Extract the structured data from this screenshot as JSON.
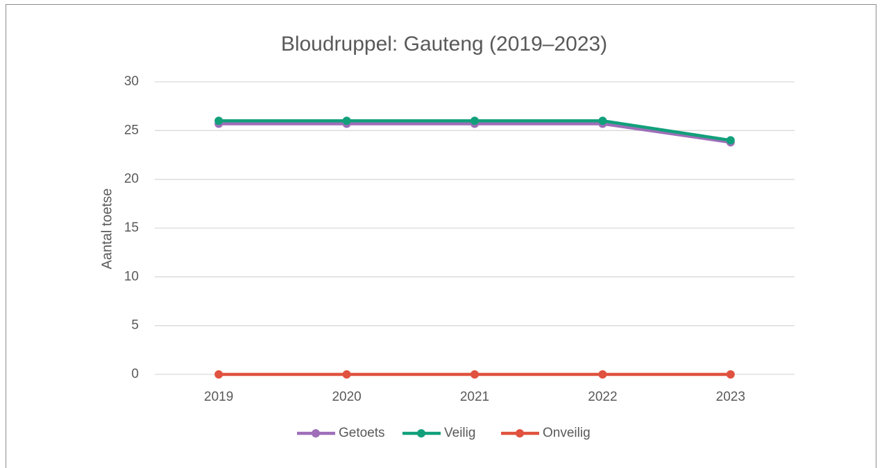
{
  "chart_data": {
    "type": "line",
    "title": "Bloudruppel: Gauteng (2019–2023)",
    "y_label": "Aantal toetse",
    "categories": [
      "2019",
      "2020",
      "2021",
      "2022",
      "2023"
    ],
    "series": [
      {
        "name": "Getoets",
        "color": "#9e6fb8",
        "values": [
          25.7,
          25.7,
          25.7,
          25.7,
          23.8
        ]
      },
      {
        "name": "Veilig",
        "color": "#12a07b",
        "values": [
          26,
          26,
          26,
          26,
          24
        ]
      },
      {
        "name": "Onveilig",
        "color": "#e0523f",
        "values": [
          0,
          0,
          0,
          0,
          0
        ]
      }
    ],
    "ylim": [
      0,
      30
    ],
    "yticks": [
      0,
      5,
      10,
      15,
      20,
      25,
      30
    ],
    "grid": true,
    "legend": "bottom"
  }
}
